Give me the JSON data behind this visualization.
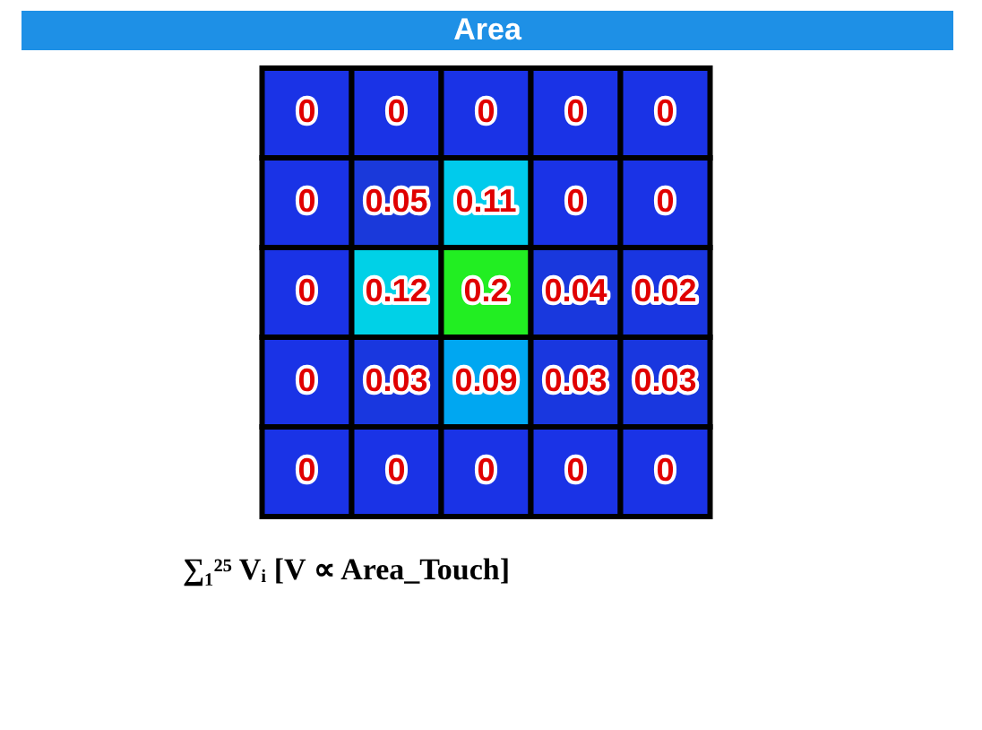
{
  "chart_data": {
    "type": "heatmap",
    "title": "Area",
    "categories": [
      null,
      null,
      null,
      null,
      null
    ],
    "y_categories": [
      null,
      null,
      null,
      null,
      null
    ],
    "cells": [
      [
        0,
        0,
        0,
        0,
        0
      ],
      [
        0,
        0.05,
        0.11,
        0,
        0
      ],
      [
        0,
        0.12,
        0.2,
        0.04,
        0.02
      ],
      [
        0,
        0.03,
        0.09,
        0.03,
        0.03
      ],
      [
        0,
        0,
        0,
        0,
        0
      ]
    ],
    "data_labels": true,
    "annotations": [
      "∑₁²⁵ Vᵢ  [V ∝ Area_Touch]"
    ]
  }
}
